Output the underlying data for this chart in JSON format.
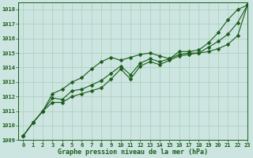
{
  "bg_color": "#cce5e0",
  "grid_color": "#aaccbb",
  "line_color": "#1a5c1a",
  "xlabel": "Graphe pression niveau de la mer (hPa)",
  "x_values": [
    0,
    1,
    2,
    3,
    4,
    5,
    6,
    7,
    8,
    9,
    10,
    11,
    12,
    13,
    14,
    15,
    16,
    17,
    18,
    19,
    20,
    21,
    22,
    23
  ],
  "ylim": [
    1009,
    1018.5
  ],
  "xlim": [
    -0.5,
    23
  ],
  "yticks": [
    1009,
    1010,
    1011,
    1012,
    1013,
    1014,
    1015,
    1016,
    1017,
    1018
  ],
  "series_top": [
    1009.3,
    1010.2,
    1011.0,
    1012.2,
    1012.5,
    1013.0,
    1013.3,
    1013.9,
    1014.4,
    1014.7,
    1014.5,
    1014.7,
    1014.9,
    1015.0,
    1014.8,
    1014.6,
    1015.1,
    1015.1,
    1015.2,
    1015.7,
    1016.4,
    1017.3,
    1018.0,
    1018.3
  ],
  "series_mid": [
    1009.3,
    1010.2,
    1011.0,
    1011.9,
    1011.8,
    1012.4,
    1012.5,
    1012.8,
    1013.1,
    1013.6,
    1014.1,
    1013.5,
    1014.3,
    1014.6,
    1014.4,
    1014.6,
    1014.9,
    1015.0,
    1015.0,
    1015.4,
    1015.8,
    1016.3,
    1017.1,
    1018.3
  ],
  "series_bot": [
    1009.3,
    1010.2,
    1011.0,
    1011.6,
    1011.6,
    1012.0,
    1012.2,
    1012.4,
    1012.6,
    1013.2,
    1013.9,
    1013.2,
    1014.1,
    1014.4,
    1014.2,
    1014.5,
    1014.8,
    1014.9,
    1015.0,
    1015.1,
    1015.3,
    1015.6,
    1016.2,
    1018.3
  ],
  "tick_fontsize": 5,
  "xlabel_fontsize": 6,
  "lw": 0.8,
  "marker_size": 2.5
}
